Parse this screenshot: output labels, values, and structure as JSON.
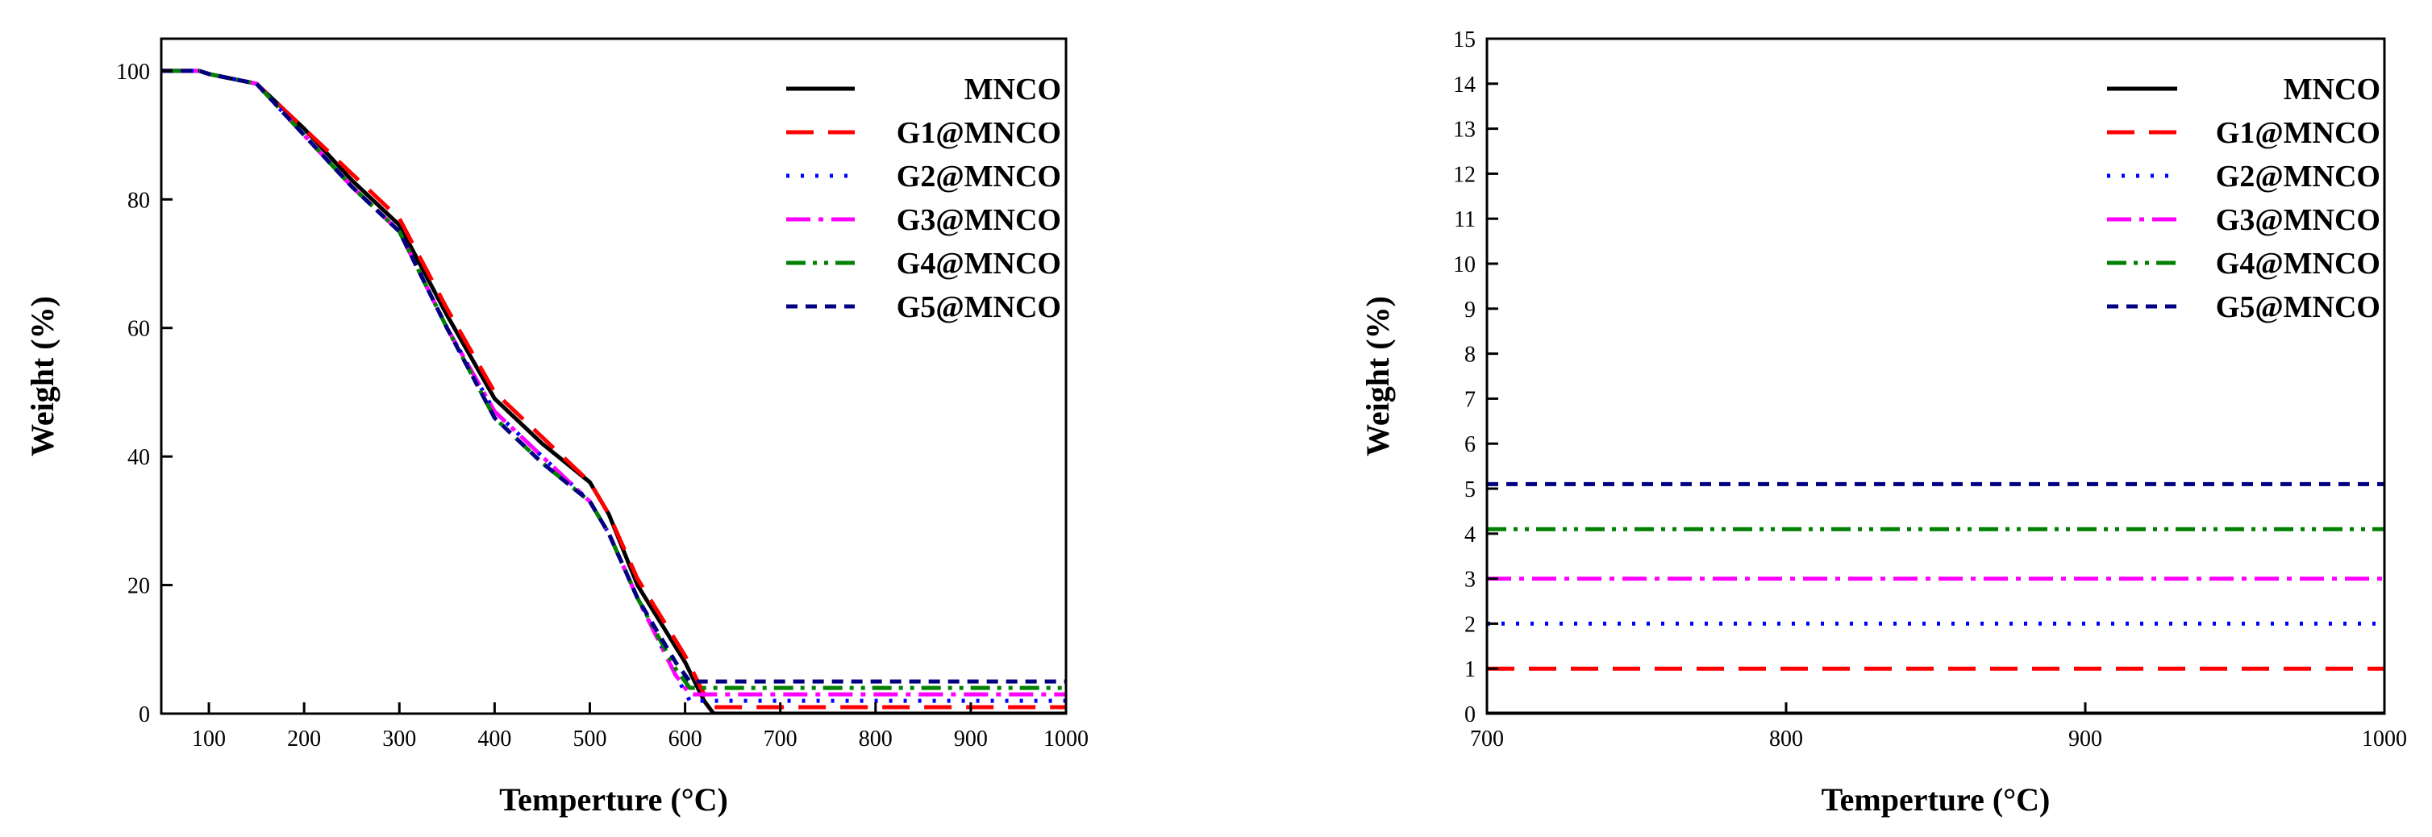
{
  "chart_data": [
    {
      "type": "line",
      "xlabel": "Temperture (°C)",
      "ylabel": "Weight (%)",
      "xlim": [
        50,
        1000
      ],
      "ylim": [
        0,
        105
      ],
      "xticks": [
        100,
        200,
        300,
        400,
        500,
        600,
        700,
        800,
        900,
        1000
      ],
      "yticks": [
        0,
        20,
        40,
        60,
        80,
        100
      ],
      "legend_position": "top-right",
      "series": [
        {
          "name": "MNCO",
          "color": "#000000",
          "dash": "solid",
          "x": [
            50,
            90,
            100,
            150,
            200,
            250,
            300,
            350,
            400,
            450,
            500,
            520,
            550,
            600,
            620,
            630,
            1000
          ],
          "y": [
            100,
            100,
            99.5,
            98,
            91,
            83,
            76,
            62,
            49,
            42,
            36,
            31,
            20,
            8,
            2,
            0,
            0
          ]
        },
        {
          "name": "G1@MNCO",
          "color": "#ff0000",
          "dash": "long-dash",
          "x": [
            50,
            90,
            100,
            150,
            200,
            250,
            300,
            350,
            400,
            450,
            500,
            520,
            550,
            600,
            620,
            630,
            1000
          ],
          "y": [
            100,
            100,
            99.5,
            98,
            91,
            84,
            77,
            63,
            50,
            43,
            36,
            31,
            21,
            9,
            3,
            1,
            1
          ]
        },
        {
          "name": "G2@MNCO",
          "color": "#0000ff",
          "dash": "dot",
          "x": [
            50,
            90,
            100,
            150,
            200,
            250,
            300,
            350,
            400,
            450,
            500,
            520,
            550,
            590,
            605,
            1000
          ],
          "y": [
            100,
            100,
            99.5,
            98,
            90,
            82,
            75,
            60,
            47,
            40,
            33,
            28,
            18,
            6,
            2,
            2
          ]
        },
        {
          "name": "G3@MNCO",
          "color": "#ff00ff",
          "dash": "dash-dot",
          "x": [
            50,
            90,
            100,
            150,
            200,
            250,
            300,
            350,
            400,
            450,
            500,
            520,
            550,
            590,
            605,
            1000
          ],
          "y": [
            100,
            100,
            99.5,
            98,
            90,
            82,
            75,
            60,
            47,
            40,
            33,
            28,
            18,
            6,
            3,
            3
          ]
        },
        {
          "name": "G4@MNCO",
          "color": "#008000",
          "dash": "dash-dot-dot",
          "x": [
            50,
            90,
            100,
            150,
            200,
            250,
            300,
            350,
            400,
            450,
            500,
            520,
            550,
            590,
            605,
            1000
          ],
          "y": [
            100,
            100,
            99.5,
            98,
            90,
            82,
            75,
            60,
            46,
            39,
            33,
            28,
            18,
            7,
            4,
            4
          ]
        },
        {
          "name": "G5@MNCO",
          "color": "#000080",
          "dash": "short-dash",
          "x": [
            50,
            90,
            100,
            150,
            200,
            250,
            300,
            350,
            400,
            450,
            500,
            520,
            550,
            590,
            605,
            1000
          ],
          "y": [
            100,
            100,
            99.5,
            98,
            90,
            82,
            75,
            60,
            46,
            39,
            33,
            28,
            18,
            8,
            5,
            5
          ]
        }
      ]
    },
    {
      "type": "line",
      "xlabel": "Temperture (°C)",
      "ylabel": "Weight (%)",
      "xlim": [
        700,
        1000
      ],
      "ylim": [
        0,
        15
      ],
      "xticks": [
        700,
        800,
        900,
        1000
      ],
      "yticks": [
        0,
        1,
        2,
        3,
        4,
        5,
        6,
        7,
        8,
        9,
        10,
        11,
        12,
        13,
        14,
        15
      ],
      "legend_position": "top-right",
      "series": [
        {
          "name": "MNCO",
          "color": "#000000",
          "dash": "solid",
          "x": [
            700,
            1000
          ],
          "y": [
            0,
            0
          ]
        },
        {
          "name": "G1@MNCO",
          "color": "#ff0000",
          "dash": "long-dash",
          "x": [
            700,
            1000
          ],
          "y": [
            1,
            1
          ]
        },
        {
          "name": "G2@MNCO",
          "color": "#0000ff",
          "dash": "dot",
          "x": [
            700,
            1000
          ],
          "y": [
            2,
            2
          ]
        },
        {
          "name": "G3@MNCO",
          "color": "#ff00ff",
          "dash": "dash-dot",
          "x": [
            700,
            1000
          ],
          "y": [
            3,
            3
          ]
        },
        {
          "name": "G4@MNCO",
          "color": "#008000",
          "dash": "dash-dot-dot",
          "x": [
            700,
            1000
          ],
          "y": [
            4.1,
            4.1
          ]
        },
        {
          "name": "G5@MNCO",
          "color": "#000080",
          "dash": "short-dash",
          "x": [
            700,
            1000
          ],
          "y": [
            5.1,
            5.1
          ]
        }
      ]
    }
  ]
}
